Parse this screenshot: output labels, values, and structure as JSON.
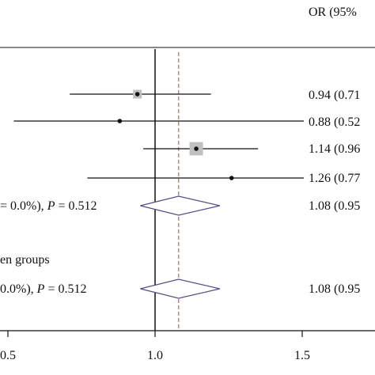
{
  "header": {
    "or_label": "OR (95%"
  },
  "chart_data": {
    "type": "forest",
    "title": "",
    "xlabel": "",
    "ylabel": "",
    "xlim": [
      0.5,
      1.5
    ],
    "x_ticks": [
      {
        "value": 0.5,
        "label": "0.5"
      },
      {
        "value": 1.0,
        "label": "1.0"
      },
      {
        "value": 1.5,
        "label": "1.5"
      }
    ],
    "null_line": 1.0,
    "overall_effect_line": 1.08,
    "studies": [
      {
        "or": 0.94,
        "lower": 0.71,
        "upper": 1.19,
        "weight": "medium",
        "text": "0.94 (0.71"
      },
      {
        "or": 0.88,
        "lower": 0.52,
        "upper": 1.52,
        "weight": "small",
        "text": "0.88 (0.52"
      },
      {
        "or": 1.14,
        "lower": 0.96,
        "upper": 1.35,
        "weight": "large",
        "text": "1.14 (0.96"
      },
      {
        "or": 1.26,
        "lower": 0.77,
        "upper": 2.05,
        "weight": "small",
        "text": "1.26 (0.77"
      }
    ],
    "subtotal": {
      "or": 1.08,
      "lower": 0.95,
      "upper": 1.22,
      "label_prefix": "= 0.0%), ",
      "p_label": "P",
      "p_value": " = 0.512",
      "text": "1.08 (0.95"
    },
    "between_groups_label": "en groups",
    "overall": {
      "or": 1.08,
      "lower": 0.95,
      "upper": 1.22,
      "label_prefix": "0.0%), ",
      "p_label": "P",
      "p_value": " = 0.512",
      "text": "1.08 (0.95"
    },
    "colors": {
      "ci_line": "#111111",
      "box": "#c0c0c0",
      "diamond": "#5a4c86",
      "effect_line": "#a07070",
      "axis": "#111111"
    }
  }
}
